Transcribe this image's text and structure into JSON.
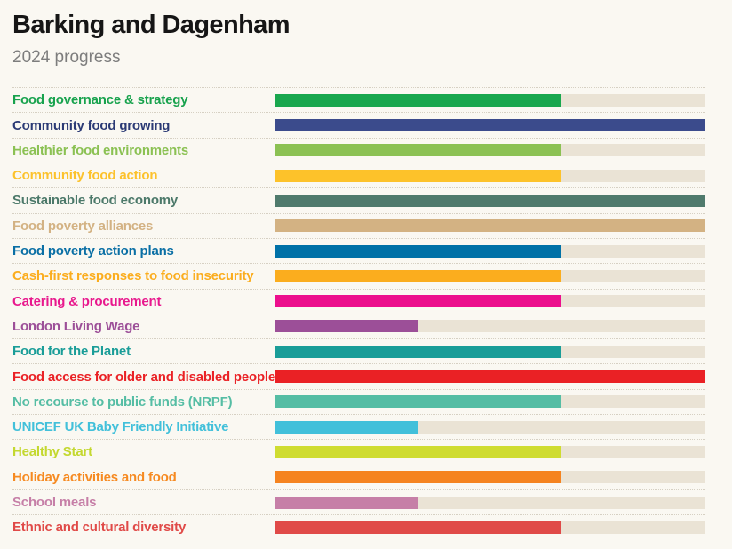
{
  "header": {
    "title": "Barking and Dagenham",
    "subtitle": "2024 progress"
  },
  "chart_data": {
    "type": "bar",
    "orientation": "horizontal",
    "title": "Barking and Dagenham",
    "subtitle": "2024 progress",
    "max_score": 3,
    "track_color": "#eae3d5",
    "grid": false,
    "legend": false,
    "categories": [
      "Food governance & strategy",
      "Community food growing",
      "Healthier food environments",
      "Community food action",
      "Sustainable food economy",
      "Food poverty alliances",
      "Food poverty action plans",
      "Cash-first responses to food insecurity",
      "Catering & procurement",
      "London Living Wage",
      "Food for the Planet",
      "Food access for older and disabled people",
      "No recourse to public funds (NRPF)",
      "UNICEF UK Baby Friendly Initiative",
      "Healthy Start",
      "Holiday activities and food",
      "School meals",
      "Ethnic and cultural diversity"
    ],
    "values": [
      2,
      3,
      2,
      2,
      3,
      3,
      2,
      2,
      2,
      1,
      2,
      3,
      2,
      1,
      2,
      2,
      1,
      2
    ],
    "percents": [
      66.6,
      100,
      66.6,
      66.6,
      100,
      100,
      66.6,
      66.6,
      66.6,
      33.3,
      66.6,
      100,
      66.6,
      33.3,
      66.6,
      66.6,
      33.3,
      66.6
    ],
    "bar_colors": [
      "#19a74e",
      "#3b4b8c",
      "#8bc153",
      "#fdc22a",
      "#4f7a6c",
      "#d3b283",
      "#0071a7",
      "#fbad1e",
      "#ec0f8d",
      "#9c4f98",
      "#1a9d98",
      "#ea2125",
      "#55bda4",
      "#42c0da",
      "#cfdc30",
      "#f5831f",
      "#c67fa7",
      "#e04a48"
    ],
    "label_colors": [
      "#17a24d",
      "#2b3a75",
      "#8bc153",
      "#fcc22c",
      "#4c796a",
      "#d3b283",
      "#0a6fa5",
      "#fbad1e",
      "#e8188d",
      "#9c4f98",
      "#1a9d98",
      "#ea2125",
      "#55bda4",
      "#42c0da",
      "#c4d830",
      "#f68a21",
      "#c67fa7",
      "#e04a48"
    ]
  }
}
